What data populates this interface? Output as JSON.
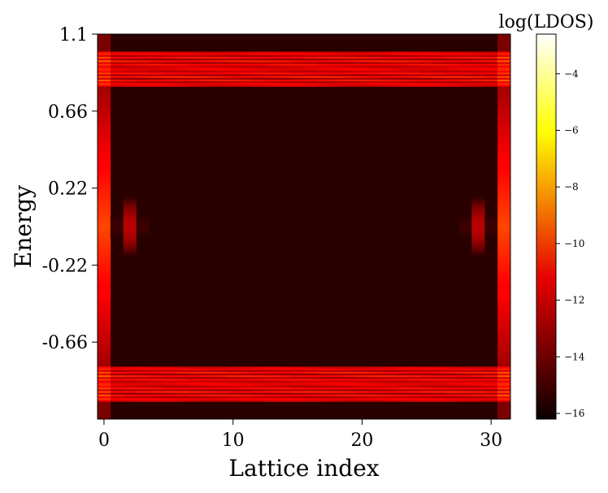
{
  "chart_data": {
    "type": "heatmap",
    "title": "",
    "xlabel": "Lattice index",
    "ylabel": "Energy",
    "x_ticks": [
      0,
      10,
      20,
      30
    ],
    "x_tick_labels": [
      "0",
      "10",
      "20",
      "30"
    ],
    "xlim": [
      -0.5,
      31.5
    ],
    "y_ticks": [
      1.1,
      0.66,
      0.22,
      -0.22,
      -0.66
    ],
    "y_tick_labels": [
      "1.1",
      "0.66",
      "0.22",
      "-0.22",
      "-0.66"
    ],
    "ylim": [
      -1.1,
      1.1
    ],
    "lattice_sites": 32,
    "colormap": "hot",
    "colorbar": {
      "label": "log(LDOS)",
      "range": [
        -16.2,
        -2.6
      ],
      "ticks": [
        -4,
        -6,
        -8,
        -10,
        -12,
        -14,
        -16
      ],
      "tick_labels": [
        "−4",
        "−6",
        "−8",
        "−10",
        "−12",
        "−14",
        "−16"
      ]
    },
    "features": {
      "background_log_ldos": -15.6,
      "bulk_bands": [
        {
          "energy_range": [
            0.8,
            1.0
          ],
          "log_ldos": -11.5
        },
        {
          "energy_range": [
            -1.0,
            -0.8
          ],
          "log_ldos": -11.5
        }
      ],
      "edge_columns": [
        {
          "site": 0,
          "log_ldos_zero_energy": -9.8
        },
        {
          "site": 31,
          "log_ldos_zero_energy": -9.8
        }
      ],
      "zero_energy_edge_peaks": [
        {
          "site": 2,
          "energy": 0.0,
          "log_ldos": -12.8
        },
        {
          "site": 29,
          "energy": 0.0,
          "log_ldos": -12.8
        }
      ]
    }
  }
}
